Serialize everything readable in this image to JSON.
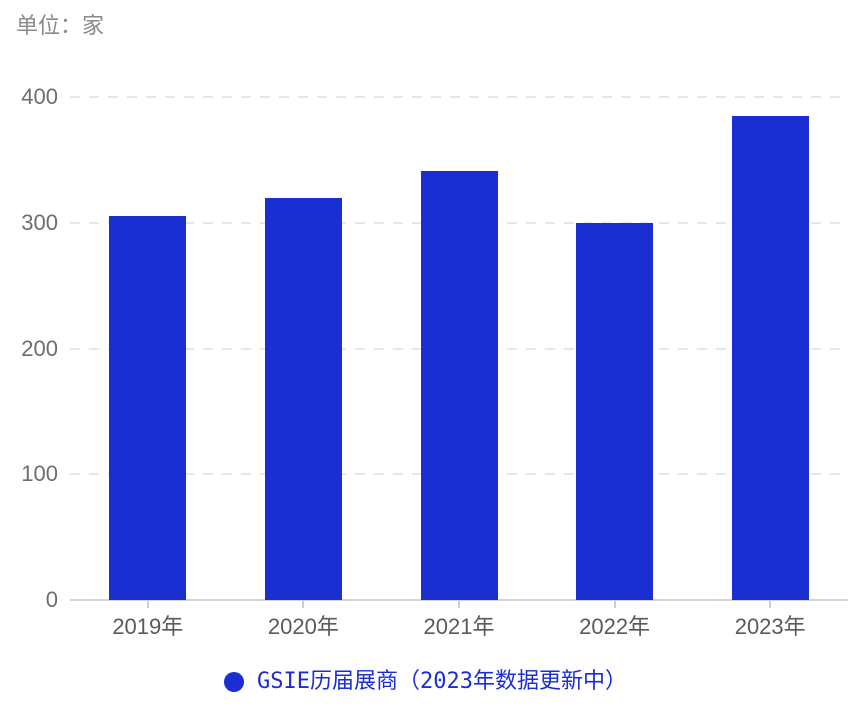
{
  "unit_label": "单位：家",
  "legend": {
    "marker": "circle-icon",
    "label": "GSIE历届展商（2023年数据更新中）"
  },
  "colors": {
    "bar": "#1a2ed2",
    "legend_text": "#1a2ed2",
    "unit_label_text": "#8a8a8a",
    "y_axis_text": "#6e6e6e",
    "x_axis_text": "#5a5a5a",
    "gridline": "#e7e7e7",
    "axis_line": "#d4d4d4"
  },
  "chart_data": {
    "type": "bar",
    "title": "",
    "unit_label": "单位：家",
    "categories": [
      "2019年",
      "2020年",
      "2021年",
      "2022年",
      "2023年"
    ],
    "series": [
      {
        "name": "GSIE历届展商（2023年数据更新中）",
        "values": [
          305,
          320,
          341,
          300,
          385
        ]
      }
    ],
    "xlabel": "",
    "ylabel": "",
    "ylim": [
      0,
      400
    ],
    "yticks": [
      0,
      100,
      200,
      300,
      400
    ],
    "grid": "horizontal-dashed",
    "legend_position": "bottom-center",
    "legend_marker": "circle"
  }
}
